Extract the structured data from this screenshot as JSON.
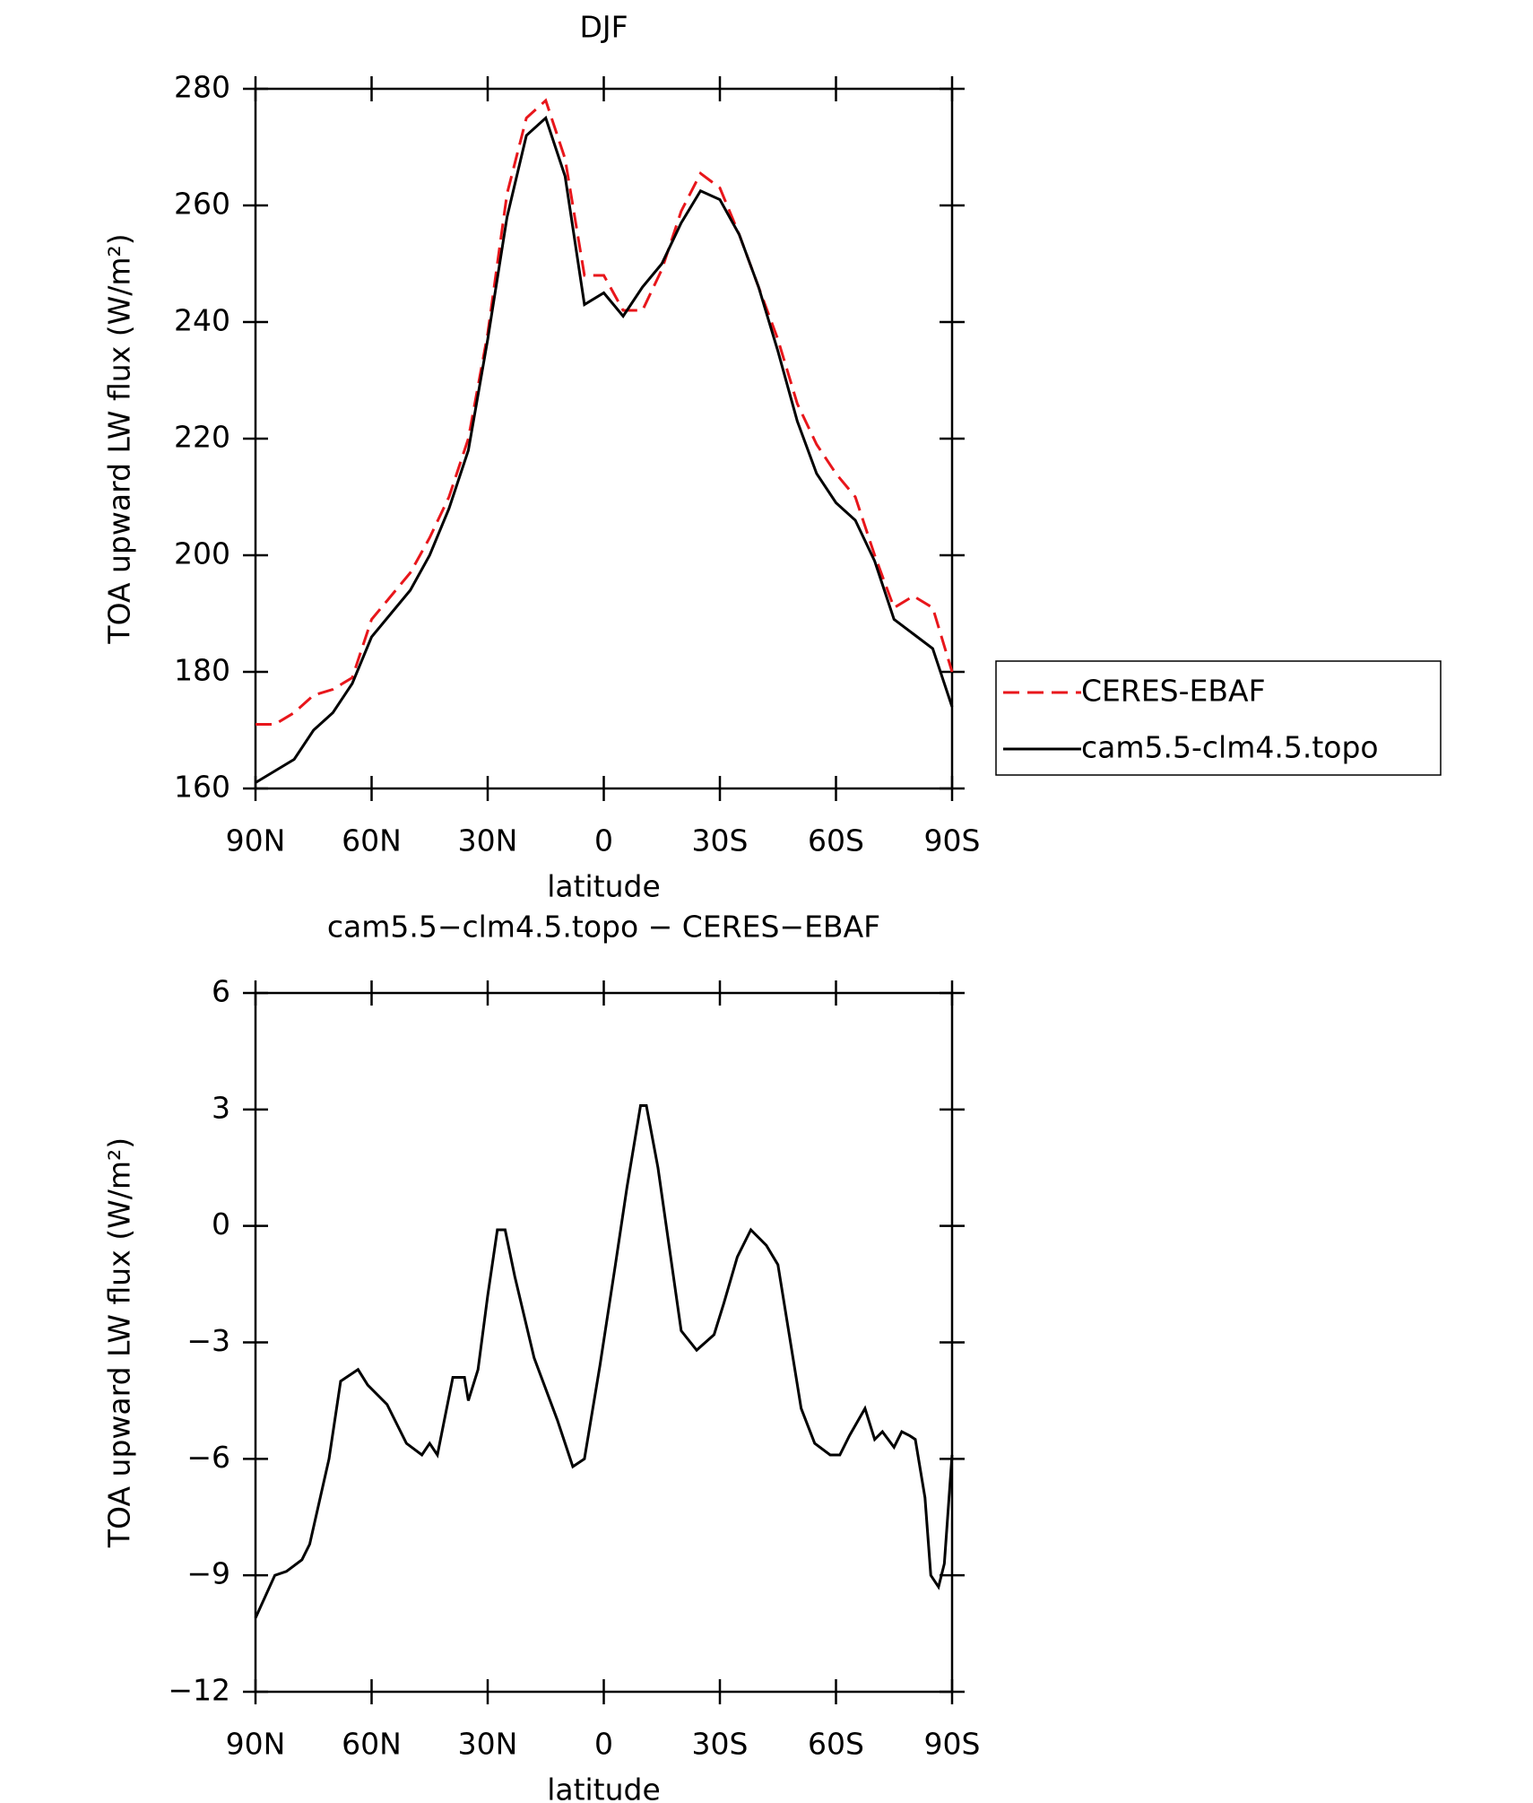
{
  "chart_data": [
    {
      "type": "line",
      "title": "DJF",
      "xlabel": "latitude",
      "ylabel": "TOA upward LW flux (W/m²)",
      "xlim": [
        90,
        -90
      ],
      "xticks": [
        {
          "value": 90,
          "label": "90N"
        },
        {
          "value": 60,
          "label": "60N"
        },
        {
          "value": 30,
          "label": "30N"
        },
        0,
        {
          "value": -30,
          "label": "30S"
        },
        {
          "value": -60,
          "label": "60S"
        },
        {
          "value": -90,
          "label": "90S"
        }
      ],
      "ylim": [
        160,
        280
      ],
      "yticks": [
        160,
        180,
        200,
        220,
        240,
        260,
        280
      ],
      "legend": "outside-right",
      "x": [
        90,
        85,
        80,
        75,
        70,
        65,
        60,
        55,
        50,
        45,
        40,
        35,
        30,
        25,
        20,
        15,
        10,
        5,
        0,
        -5,
        -10,
        -15,
        -20,
        -25,
        -30,
        -35,
        -40,
        -45,
        -50,
        -55,
        -60,
        -65,
        -70,
        -75,
        -80,
        -85,
        -90
      ],
      "series": [
        {
          "name": "CERES-EBAF",
          "color": "#e8161b",
          "line_style": "dashed",
          "values": [
            171,
            171,
            173,
            176,
            177,
            179,
            189,
            193,
            197,
            203,
            210,
            220,
            238,
            262,
            275,
            278,
            268,
            248,
            248,
            242,
            242,
            249,
            259,
            265.5,
            263,
            255,
            246,
            237,
            226,
            219,
            214,
            210,
            200,
            191,
            193,
            191,
            180
          ]
        },
        {
          "name": "cam5.5-clm4.5.topo",
          "color": "#000000",
          "line_style": "solid",
          "values": [
            161,
            163,
            165,
            170,
            173,
            178,
            186,
            190,
            194,
            200,
            208,
            218,
            237,
            258,
            272,
            275,
            265,
            243,
            245,
            241,
            246,
            250,
            257,
            262.5,
            261,
            255,
            246,
            235,
            223,
            214,
            209,
            206,
            199,
            189,
            186.5,
            184,
            174
          ]
        }
      ]
    },
    {
      "type": "line",
      "title": "cam5.5−clm4.5.topo − CERES−EBAF",
      "xlabel": "latitude",
      "ylabel": "TOA upward LW flux (W/m²)",
      "xlim": [
        90,
        -90
      ],
      "xticks": [
        {
          "value": 90,
          "label": "90N"
        },
        {
          "value": 60,
          "label": "60N"
        },
        {
          "value": 30,
          "label": "30N"
        },
        0,
        {
          "value": -30,
          "label": "30S"
        },
        {
          "value": -60,
          "label": "60S"
        },
        {
          "value": -90,
          "label": "90S"
        }
      ],
      "ylim": [
        -12,
        6
      ],
      "yticks": [
        {
          "value": -12,
          "label": "−12"
        },
        {
          "value": -9,
          "label": "−9"
        },
        {
          "value": -6,
          "label": "−6"
        },
        {
          "value": -3,
          "label": "−3"
        },
        0,
        3,
        6
      ],
      "x": [
        90,
        85,
        82,
        78,
        76,
        71,
        68,
        63.5,
        61,
        56,
        51,
        47,
        45,
        43,
        39,
        36,
        35,
        32.5,
        30,
        27.5,
        25.5,
        23,
        18,
        12,
        8,
        5,
        1,
        -3,
        -6,
        -9.5,
        -11,
        -14,
        -20,
        -24,
        -28.5,
        -31,
        -34.5,
        -38,
        -42,
        -45,
        -51,
        -54.5,
        -58.5,
        -61,
        -63.5,
        -67.5,
        -70,
        -72,
        -75,
        -77,
        -79,
        -80.5,
        -83,
        -84.5,
        -86.5,
        -88,
        -90
      ],
      "series": [
        {
          "name": "cam5.5-clm4.5.topo − CERES-EBAF",
          "color": "#000000",
          "line_style": "solid",
          "values": [
            -10.1,
            -9.0,
            -8.9,
            -8.6,
            -8.2,
            -6.0,
            -4.0,
            -3.7,
            -4.1,
            -4.6,
            -5.6,
            -5.9,
            -5.6,
            -5.9,
            -3.9,
            -3.9,
            -4.5,
            -3.7,
            -1.8,
            -0.1,
            -0.1,
            -1.3,
            -3.4,
            -5.0,
            -6.2,
            -6.0,
            -3.6,
            -1.0,
            1.0,
            3.1,
            3.1,
            1.5,
            -2.7,
            -3.2,
            -2.8,
            -2.0,
            -0.8,
            -0.1,
            -0.5,
            -1.0,
            -4.7,
            -5.6,
            -5.9,
            -5.9,
            -5.4,
            -4.7,
            -5.5,
            -5.3,
            -5.7,
            -5.3,
            -5.4,
            -5.5,
            -7.0,
            -9.0,
            -9.3,
            -8.7,
            -5.9
          ]
        }
      ]
    }
  ]
}
